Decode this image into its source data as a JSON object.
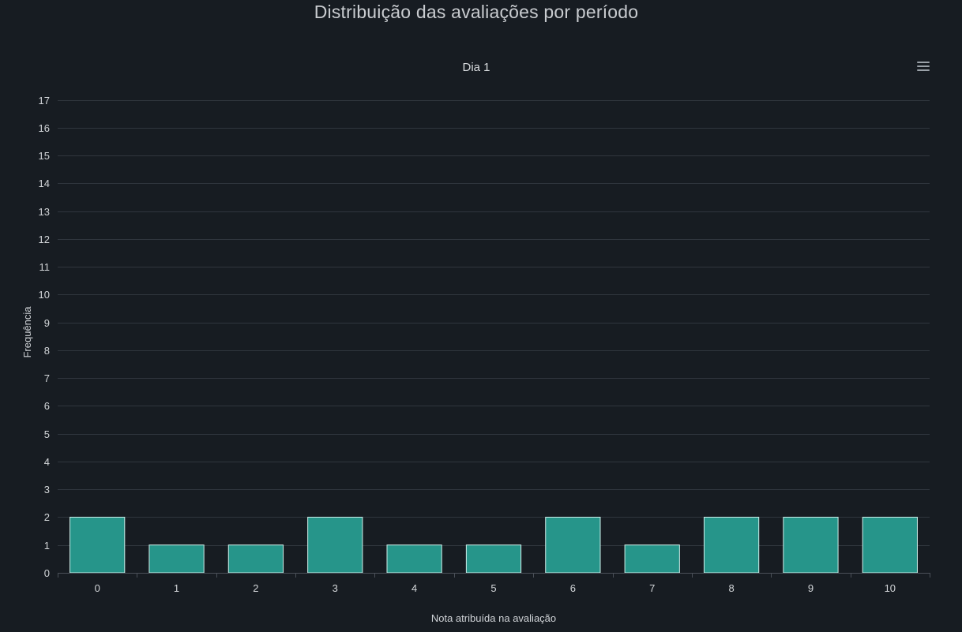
{
  "header": {
    "title": "Distribuição das avaliações por período"
  },
  "toolbar": {
    "menu_icon": "hamburger-menu-icon"
  },
  "chart_data": {
    "type": "bar",
    "title": "Dia 1",
    "xlabel": "Nota atribuída na avaliação",
    "ylabel": "Frequência",
    "categories": [
      "0",
      "1",
      "2",
      "3",
      "4",
      "5",
      "6",
      "7",
      "8",
      "9",
      "10"
    ],
    "values": [
      2,
      1,
      1,
      2,
      1,
      1,
      2,
      1,
      2,
      2,
      2
    ],
    "ylim": [
      0,
      17
    ],
    "yticks": [
      0,
      1,
      2,
      3,
      4,
      5,
      6,
      7,
      8,
      9,
      10,
      11,
      12,
      13,
      14,
      15,
      16,
      17
    ],
    "grid": true,
    "legend": "none",
    "colors": {
      "bar_fill": "#26958a",
      "bar_stroke": "#cfeee9",
      "grid": "#30363e",
      "background": "#171c22"
    }
  }
}
